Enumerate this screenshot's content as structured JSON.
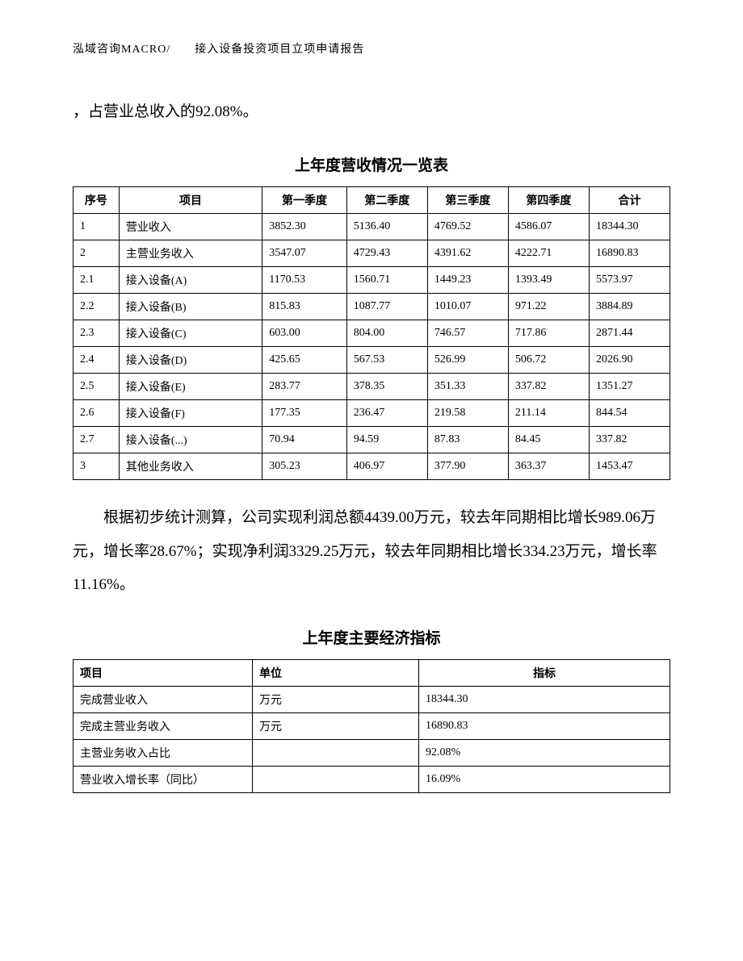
{
  "header": "泓域咨询MACRO/　　接入设备投资项目立项申请报告",
  "intro_text": "，占营业总收入的92.08%。",
  "table1": {
    "title": "上年度营收情况一览表",
    "columns": [
      "序号",
      "项目",
      "第一季度",
      "第二季度",
      "第三季度",
      "第四季度",
      "合计"
    ],
    "rows": [
      [
        "1",
        "营业收入",
        "3852.30",
        "5136.40",
        "4769.52",
        "4586.07",
        "18344.30"
      ],
      [
        "2",
        "主营业务收入",
        "3547.07",
        "4729.43",
        "4391.62",
        "4222.71",
        "16890.83"
      ],
      [
        "2.1",
        "接入设备(A)",
        "1170.53",
        "1560.71",
        "1449.23",
        "1393.49",
        "5573.97"
      ],
      [
        "2.2",
        "接入设备(B)",
        "815.83",
        "1087.77",
        "1010.07",
        "971.22",
        "3884.89"
      ],
      [
        "2.3",
        "接入设备(C)",
        "603.00",
        "804.00",
        "746.57",
        "717.86",
        "2871.44"
      ],
      [
        "2.4",
        "接入设备(D)",
        "425.65",
        "567.53",
        "526.99",
        "506.72",
        "2026.90"
      ],
      [
        "2.5",
        "接入设备(E)",
        "283.77",
        "378.35",
        "351.33",
        "337.82",
        "1351.27"
      ],
      [
        "2.6",
        "接入设备(F)",
        "177.35",
        "236.47",
        "219.58",
        "211.14",
        "844.54"
      ],
      [
        "2.7",
        "接入设备(...)",
        "70.94",
        "94.59",
        "87.83",
        "84.45",
        "337.82"
      ],
      [
        "3",
        "其他业务收入",
        "305.23",
        "406.97",
        "377.90",
        "363.37",
        "1453.47"
      ]
    ]
  },
  "middle_text": "根据初步统计测算，公司实现利润总额4439.00万元，较去年同期相比增长989.06万元，增长率28.67%；实现净利润3329.25万元，较去年同期相比增长334.23万元，增长率11.16%。",
  "table2": {
    "title": "上年度主要经济指标",
    "columns": [
      "项目",
      "单位",
      "指标"
    ],
    "rows": [
      [
        "完成营业收入",
        "万元",
        "18344.30"
      ],
      [
        "完成主营业务收入",
        "万元",
        "16890.83"
      ],
      [
        "主营业务收入占比",
        "",
        "92.08%"
      ],
      [
        "营业收入增长率（同比）",
        "",
        "16.09%"
      ]
    ]
  }
}
